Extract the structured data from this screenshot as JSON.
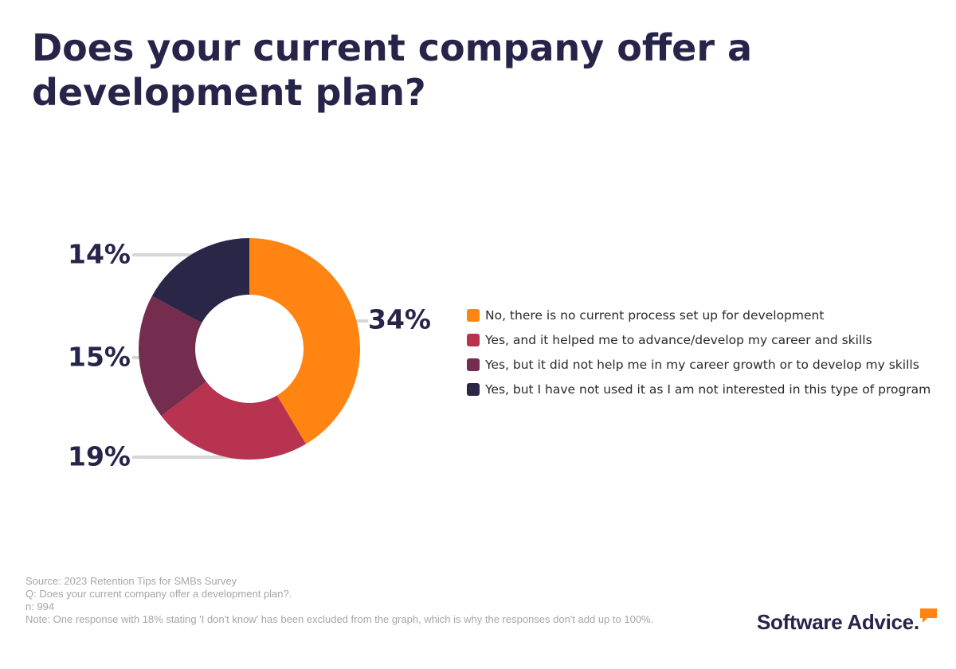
{
  "title": "Does your current company offer a development plan?",
  "chart_data": {
    "type": "pie",
    "subtype": "donut",
    "title": "Does your current company offer a development plan?",
    "categories": [
      "No, there is no current process set up for development",
      "Yes, and it helped me to advance/develop my career and skills",
      "Yes, but it did not help me in my career growth or to develop my skills",
      "Yes, but I have not used it as I am not interested in this type of program"
    ],
    "values": [
      34,
      19,
      15,
      14
    ],
    "labels": [
      "34%",
      "19%",
      "15%",
      "14%"
    ],
    "colors": [
      "#ff8412",
      "#b73350",
      "#742c4f",
      "#2a2648"
    ],
    "legend_position": "right"
  },
  "footnote": {
    "source": "Source: 2023 Retention Tips for SMBs Survey",
    "question": "Q: Does your current company offer a development plan?.",
    "n": "n: 994",
    "note": "Note: One response with 18% stating 'I don't know' has been excluded from the graph, which is why the responses don't add up to 100%."
  },
  "brand": {
    "name": "Software Advice",
    "dot": ".",
    "accent_color": "#ff8412",
    "icon": "speech-bubble-icon"
  }
}
